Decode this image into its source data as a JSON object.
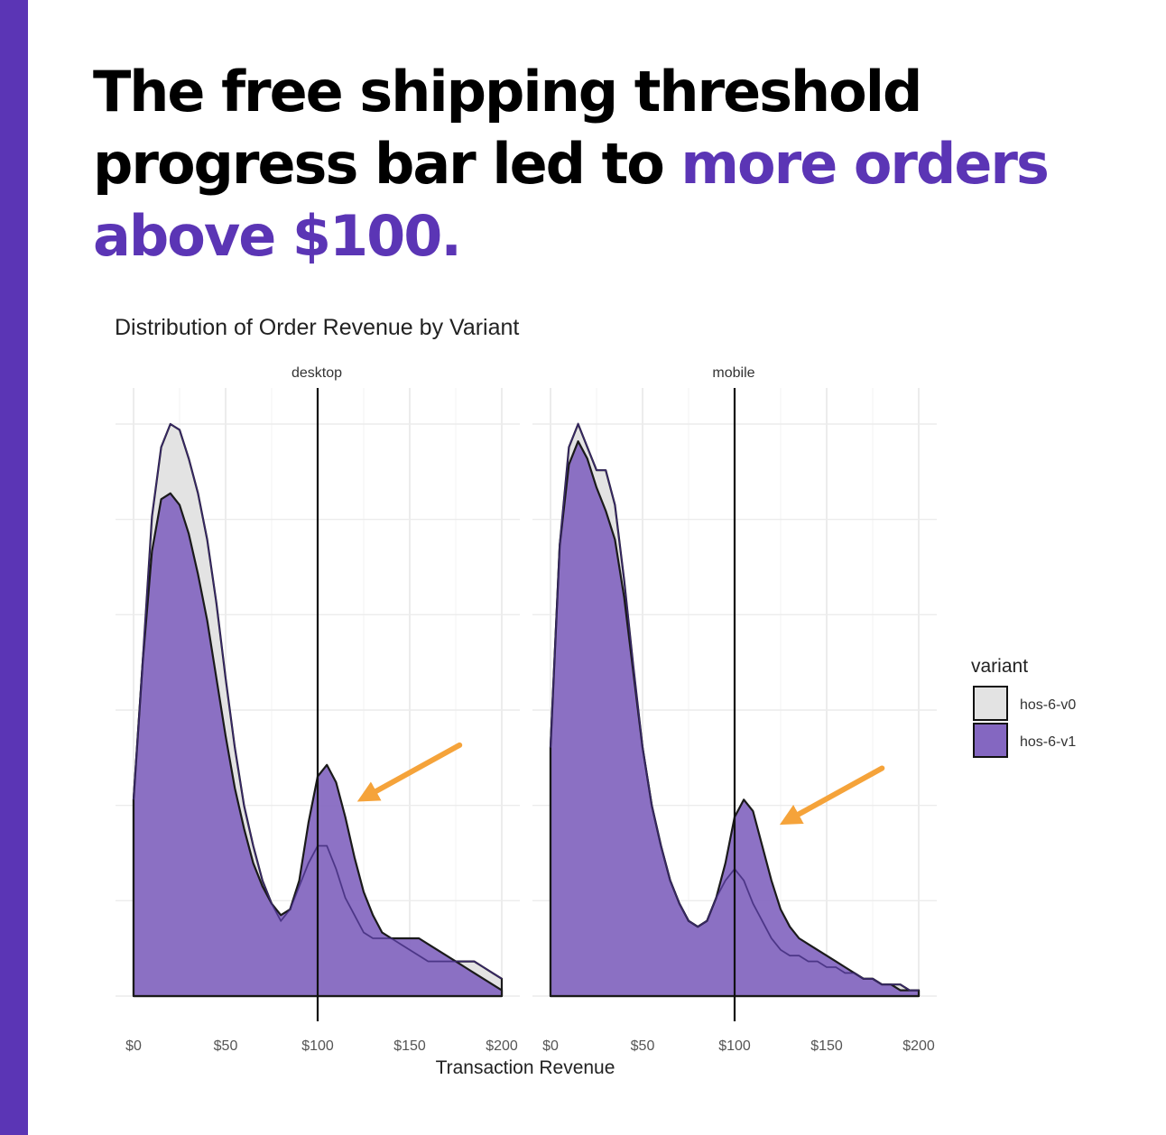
{
  "headline": {
    "part1": "The free shipping threshold progress bar led to ",
    "highlight": "more orders above $100.",
    "highlight_color": "#5b35b5"
  },
  "accent_color": "#5b35b5",
  "chart_data": {
    "type": "area",
    "title": "Distribution of Order Revenue by Variant",
    "xlabel": "Transaction Revenue",
    "ylabel": "",
    "xlim": [
      0,
      200
    ],
    "ylim": [
      0,
      1
    ],
    "x_ticks": [
      0,
      50,
      100,
      150,
      200
    ],
    "x_tick_labels": [
      "$0",
      "$50",
      "$100",
      "$150",
      "$200"
    ],
    "grid": true,
    "reference_line_x": 100,
    "legend": {
      "title": "variant",
      "position": "right",
      "entries": [
        {
          "name": "hos-6-v0",
          "color": "#e3e3e3"
        },
        {
          "name": "hos-6-v1",
          "color": "#8467c1"
        }
      ]
    },
    "annotations": [
      {
        "type": "arrow",
        "panel": "desktop",
        "target": [
          105,
          0.35
        ],
        "color": "#f5a33a"
      },
      {
        "type": "arrow",
        "panel": "mobile",
        "target": [
          108,
          0.31
        ],
        "color": "#f5a33a"
      }
    ],
    "panels": [
      {
        "name": "desktop",
        "series": [
          {
            "name": "hos-6-v0",
            "x": [
              0,
              5,
              10,
              15,
              20,
              25,
              30,
              35,
              40,
              45,
              50,
              55,
              60,
              65,
              70,
              75,
              80,
              85,
              90,
              95,
              100,
              105,
              110,
              115,
              120,
              125,
              130,
              135,
              140,
              145,
              150,
              155,
              160,
              165,
              170,
              175,
              180,
              185,
              190,
              195,
              200
            ],
            "y": [
              0.34,
              0.58,
              0.83,
              0.95,
              0.99,
              0.98,
              0.93,
              0.87,
              0.79,
              0.68,
              0.55,
              0.43,
              0.33,
              0.26,
              0.2,
              0.16,
              0.13,
              0.15,
              0.19,
              0.23,
              0.26,
              0.26,
              0.22,
              0.17,
              0.14,
              0.11,
              0.1,
              0.1,
              0.1,
              0.09,
              0.08,
              0.07,
              0.06,
              0.06,
              0.06,
              0.06,
              0.06,
              0.06,
              0.05,
              0.04,
              0.03
            ]
          },
          {
            "name": "hos-6-v1",
            "x": [
              0,
              5,
              10,
              15,
              20,
              25,
              30,
              35,
              40,
              45,
              50,
              55,
              60,
              65,
              70,
              75,
              80,
              85,
              90,
              95,
              100,
              105,
              110,
              115,
              120,
              125,
              130,
              135,
              140,
              145,
              150,
              155,
              160,
              165,
              170,
              175,
              180,
              185,
              190,
              195,
              200
            ],
            "y": [
              0.34,
              0.58,
              0.77,
              0.86,
              0.87,
              0.85,
              0.8,
              0.73,
              0.65,
              0.55,
              0.45,
              0.36,
              0.29,
              0.23,
              0.19,
              0.16,
              0.14,
              0.15,
              0.2,
              0.3,
              0.38,
              0.4,
              0.37,
              0.31,
              0.24,
              0.18,
              0.14,
              0.11,
              0.1,
              0.1,
              0.1,
              0.1,
              0.09,
              0.08,
              0.07,
              0.06,
              0.05,
              0.04,
              0.03,
              0.02,
              0.01
            ]
          }
        ]
      },
      {
        "name": "mobile",
        "series": [
          {
            "name": "hos-6-v0",
            "x": [
              0,
              5,
              10,
              15,
              20,
              25,
              30,
              35,
              40,
              45,
              50,
              55,
              60,
              65,
              70,
              75,
              80,
              85,
              90,
              95,
              100,
              105,
              110,
              115,
              120,
              125,
              130,
              135,
              140,
              145,
              150,
              155,
              160,
              165,
              170,
              175,
              180,
              185,
              190,
              195,
              200
            ],
            "y": [
              0.43,
              0.78,
              0.95,
              0.99,
              0.95,
              0.91,
              0.91,
              0.85,
              0.72,
              0.57,
              0.43,
              0.33,
              0.26,
              0.2,
              0.16,
              0.13,
              0.12,
              0.13,
              0.17,
              0.2,
              0.22,
              0.2,
              0.16,
              0.13,
              0.1,
              0.08,
              0.07,
              0.07,
              0.06,
              0.06,
              0.05,
              0.05,
              0.04,
              0.04,
              0.03,
              0.03,
              0.02,
              0.02,
              0.02,
              0.01,
              0.01
            ]
          },
          {
            "name": "hos-6-v1",
            "x": [
              0,
              5,
              10,
              15,
              20,
              25,
              30,
              35,
              40,
              45,
              50,
              55,
              60,
              65,
              70,
              75,
              80,
              85,
              90,
              95,
              100,
              105,
              110,
              115,
              120,
              125,
              130,
              135,
              140,
              145,
              150,
              155,
              160,
              165,
              170,
              175,
              180,
              185,
              190,
              195,
              200
            ],
            "y": [
              0.43,
              0.78,
              0.92,
              0.96,
              0.93,
              0.88,
              0.84,
              0.79,
              0.69,
              0.56,
              0.43,
              0.33,
              0.26,
              0.2,
              0.16,
              0.13,
              0.12,
              0.13,
              0.17,
              0.23,
              0.31,
              0.34,
              0.32,
              0.26,
              0.2,
              0.15,
              0.12,
              0.1,
              0.09,
              0.08,
              0.07,
              0.06,
              0.05,
              0.04,
              0.03,
              0.03,
              0.02,
              0.02,
              0.01,
              0.01,
              0.01
            ]
          }
        ]
      }
    ]
  }
}
